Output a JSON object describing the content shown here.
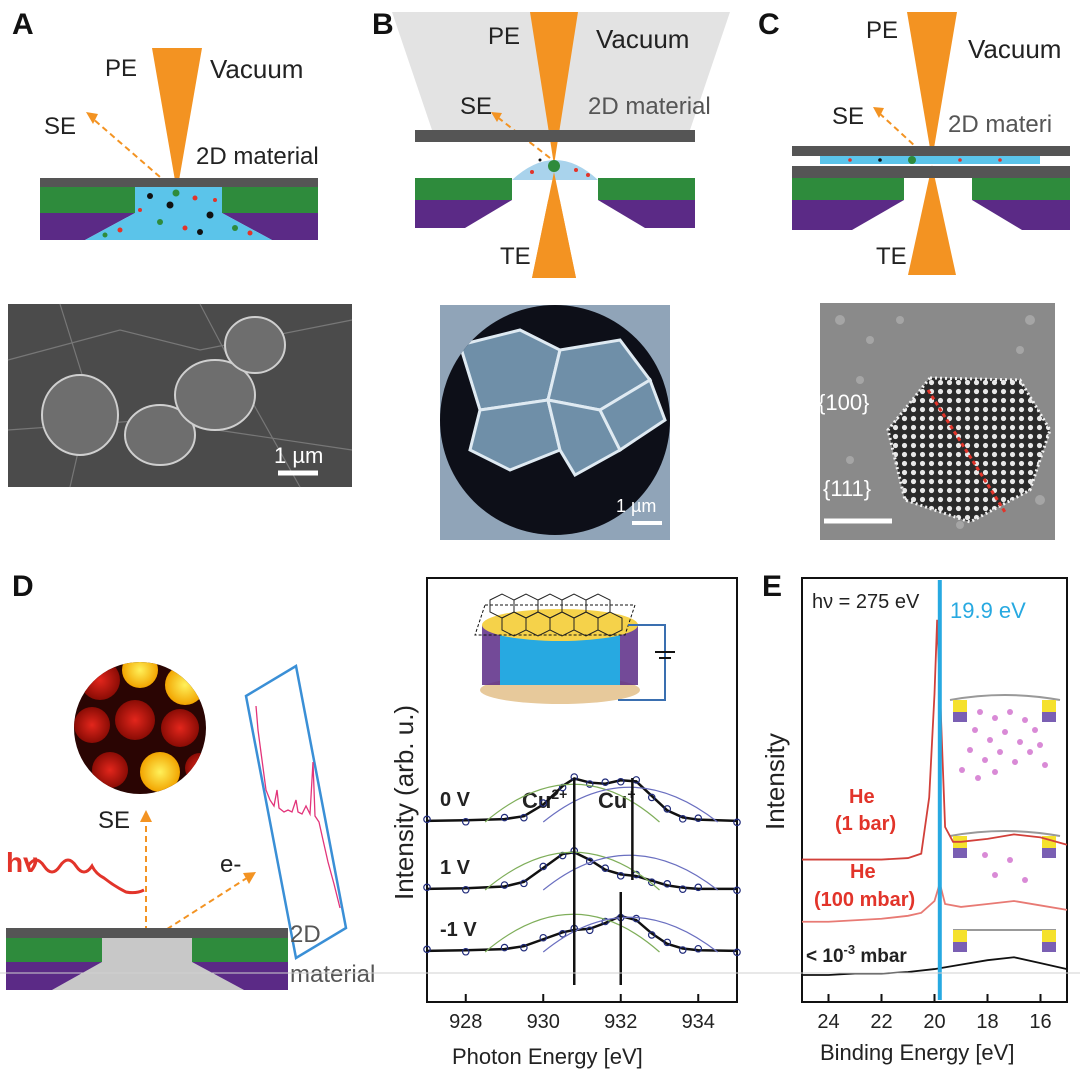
{
  "panels": {
    "A": {
      "letter": "A",
      "pe": "PE",
      "vacuum": "Vacuum",
      "se": "SE",
      "material": "2D material",
      "scale": "1 µm"
    },
    "B": {
      "letter": "B",
      "pe": "PE",
      "vacuum": "Vacuum",
      "se": "SE",
      "material": "2D material",
      "te": "TE",
      "scale": "1 µm"
    },
    "C": {
      "letter": "C",
      "pe": "PE",
      "vacuum": "Vacuum",
      "se": "SE",
      "material": "2D materi",
      "te": "TE",
      "facet_100": "{100}",
      "facet_111": "{111}"
    },
    "D": {
      "letter": "D",
      "hv": "hν",
      "se": "SE",
      "electron": "e-",
      "material_line1": "2D",
      "material_line2": "material"
    },
    "E": {
      "letter": "E",
      "photon": "hν = 275 eV",
      "peak_label": "19.9 eV",
      "he1_line1": "He",
      "he1_line2": "(1 bar)",
      "he2_line1": "He",
      "he2_line2": "(100 mbar)",
      "vac_label": "< 10-3 mbar"
    }
  },
  "colors": {
    "orange": "#F39322",
    "green": "#2E8B3C",
    "purple": "#5B2A86",
    "liquid": "#5BC4EA",
    "gray_layer": "#5a5a5a",
    "peak_line": "#27A9E1",
    "he_red": "#E2342A",
    "xps_data": "#1F2A7A"
  },
  "chart_data": [
    {
      "type": "line",
      "title": "",
      "xlabel": "Photon Energy [eV]",
      "ylabel": "Intensity (arb. u.)",
      "xlim": [
        927,
        935
      ],
      "xticks": [
        928,
        930,
        932,
        934
      ],
      "annotations": [
        "Cu2+",
        "Cu+"
      ],
      "series": [
        {
          "name": "0 V",
          "x": [
            927,
            928,
            929,
            929.5,
            930,
            930.5,
            930.8,
            931.2,
            931.6,
            932,
            932.4,
            932.8,
            933.2,
            933.6,
            934,
            935
          ],
          "values": [
            0.02,
            0.03,
            0.05,
            0.1,
            0.3,
            0.62,
            0.75,
            0.68,
            0.66,
            0.72,
            0.7,
            0.45,
            0.2,
            0.08,
            0.04,
            0.02
          ]
        },
        {
          "name": "1 V",
          "x": [
            927,
            928,
            929,
            929.5,
            930,
            930.5,
            930.8,
            931.2,
            931.6,
            932,
            932.4,
            932.8,
            933.2,
            933.6,
            934,
            935
          ],
          "values": [
            0.02,
            0.03,
            0.06,
            0.14,
            0.38,
            0.62,
            0.65,
            0.52,
            0.35,
            0.27,
            0.24,
            0.16,
            0.08,
            0.04,
            0.02,
            0.02
          ]
        },
        {
          "name": "-1 V",
          "x": [
            927,
            928,
            929,
            929.5,
            930,
            930.5,
            930.8,
            931.2,
            931.6,
            932,
            932.4,
            932.8,
            933.2,
            933.6,
            934,
            935
          ],
          "values": [
            0.02,
            0.03,
            0.05,
            0.1,
            0.22,
            0.34,
            0.38,
            0.4,
            0.5,
            0.62,
            0.55,
            0.32,
            0.14,
            0.06,
            0.03,
            0.02
          ]
        }
      ],
      "reference_lines": [
        930.8,
        932.3,
        932.0
      ]
    },
    {
      "type": "line",
      "title": "",
      "xlabel": "Binding Energy [eV]",
      "ylabel": "Intensity",
      "xlim": [
        25,
        15
      ],
      "xticks": [
        24,
        22,
        20,
        18,
        16
      ],
      "reference_line": 19.8,
      "series": [
        {
          "name": "He (1 bar)",
          "x": [
            25,
            24,
            23,
            22,
            21,
            20.5,
            20.2,
            20.0,
            19.9,
            19.8,
            19.6,
            19.3,
            19,
            18,
            17,
            16,
            15
          ],
          "values": [
            0.78,
            0.78,
            0.78,
            0.78,
            0.79,
            0.82,
            1.2,
            1.9,
            2.4,
            1.95,
            1.0,
            0.9,
            0.9,
            0.92,
            0.95,
            0.93,
            0.88
          ]
        },
        {
          "name": "He (100 mbar)",
          "x": [
            25,
            24,
            23,
            22,
            21,
            20.5,
            20,
            19.8,
            19.6,
            19,
            18,
            17,
            16,
            15
          ],
          "values": [
            0.36,
            0.36,
            0.37,
            0.38,
            0.4,
            0.42,
            0.5,
            0.62,
            0.48,
            0.46,
            0.48,
            0.5,
            0.47,
            0.44
          ]
        },
        {
          "name": "< 10-3 mbar",
          "x": [
            25,
            24,
            23,
            22,
            21,
            20,
            19,
            18,
            17,
            16,
            15
          ],
          "values": [
            0.0,
            0.0,
            0.01,
            0.01,
            0.02,
            0.04,
            0.07,
            0.1,
            0.12,
            0.08,
            0.04
          ]
        }
      ]
    }
  ]
}
